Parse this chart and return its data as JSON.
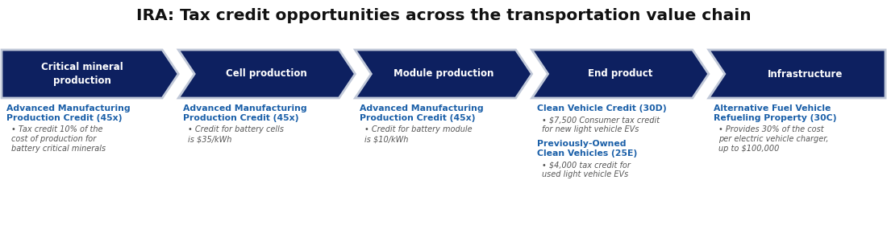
{
  "title": "IRA: Tax credit opportunities across the transportation value chain",
  "title_fontsize": 14.5,
  "title_color": "#111111",
  "background_color": "#ffffff",
  "arrow_color": "#0d2060",
  "arrow_border_color": "#c0c8d8",
  "arrow_text_color": "#ffffff",
  "arrow_label_fontsize": 8.5,
  "arrow_labels": [
    "Critical mineral\nproduction",
    "Cell production",
    "Module production",
    "End product",
    "Infrastructure"
  ],
  "content_title_color": "#1a5fa8",
  "content_title_fontsize": 7.8,
  "content_body_color": "#555555",
  "content_body_fontsize": 7.0,
  "columns": [
    {
      "title": "Advanced Manufacturing\nProduction Credit (45x)",
      "bullets": [
        "Tax credit 10% of the\ncost of production for\nbattery critical minerals"
      ]
    },
    {
      "title": "Advanced Manufacturing\nProduction Credit (45x)",
      "bullets": [
        "Credit for battery cells\nis $35/kWh"
      ]
    },
    {
      "title": "Advanced Manufacturing\nProduction Credit (45x)",
      "bullets": [
        "Credit for battery module\nis $10/kWh"
      ]
    },
    {
      "title": "Clean Vehicle Credit (30D)",
      "bullets": [
        "$7,500 Consumer tax credit\nfor new light vehicle EVs"
      ],
      "title2": "Previously-Owned\nClean Vehicles (25E)",
      "bullets2": [
        "$4,000 tax credit for\nused light vehicle EVs"
      ]
    },
    {
      "title": "Alternative Fuel Vehicle\nRefueling Property (30C)",
      "bullets": [
        "Provides 30% of the cost\nper electric vehicle charger,\nup to $100,000"
      ]
    }
  ]
}
